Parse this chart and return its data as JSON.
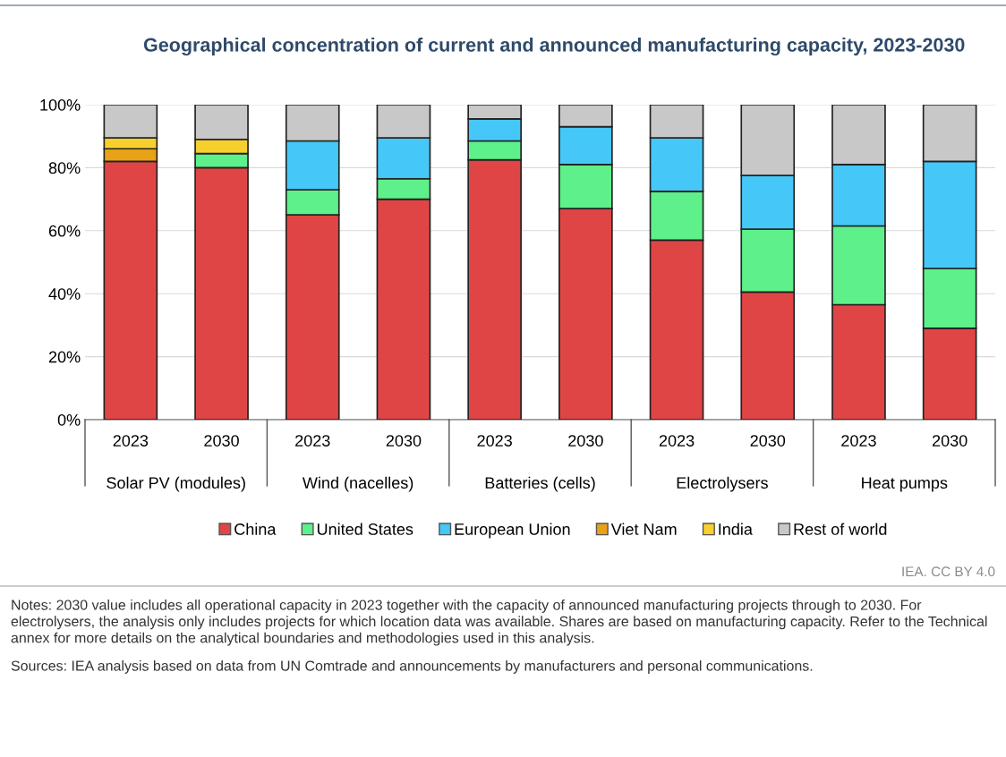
{
  "chart_data": {
    "type": "bar",
    "title": "Geographical concentration of current and announced manufacturing capacity, 2023-2030",
    "categories": [
      "2023",
      "2030",
      "2023",
      "2030",
      "2023",
      "2030",
      "2023",
      "2030",
      "2023",
      "2030"
    ],
    "stacked": true,
    "series": [
      {
        "name": "China",
        "color": "#e04545",
        "values": [
          82,
          80,
          65,
          70,
          82.5,
          67,
          57,
          40.5,
          36.5,
          29
        ]
      },
      {
        "name": "United States",
        "color": "#5ef08a",
        "values": [
          0,
          4.5,
          8,
          6.5,
          6,
          14,
          15.5,
          20,
          25,
          19
        ]
      },
      {
        "name": "European Union",
        "color": "#45c8f7",
        "values": [
          0,
          0,
          15.5,
          13,
          7,
          12,
          17,
          17,
          19.5,
          34
        ]
      },
      {
        "name": "Viet Nam",
        "color": "#e8a218",
        "values": [
          4,
          0,
          0,
          0,
          0,
          0,
          0,
          0,
          0,
          0
        ]
      },
      {
        "name": "India",
        "color": "#f7d02e",
        "values": [
          3.5,
          4.5,
          0,
          0,
          0,
          0,
          0,
          0,
          0,
          0
        ]
      },
      {
        "name": "Rest of world",
        "color": "#c8c8c8",
        "values": [
          10.5,
          11,
          11.5,
          10.5,
          4.5,
          7,
          10.5,
          22.5,
          19,
          18
        ]
      }
    ],
    "ylim": [
      0,
      100
    ],
    "yticks": [
      {
        "value": 0,
        "label": "0%"
      },
      {
        "value": 20,
        "label": "20%"
      },
      {
        "value": 40,
        "label": "40%"
      },
      {
        "value": 60,
        "label": "60%"
      },
      {
        "value": 80,
        "label": "80%"
      },
      {
        "value": 100,
        "label": "100%"
      }
    ],
    "grid": "y",
    "legend": "bottom",
    "annotations": [
      "Solar PV (modules)",
      "Wind (nacelles)",
      "Batteries (cells)",
      "Electrolysers",
      "Heat pumps",
      "IEA. CC BY 4.0",
      "Notes: 2030 value includes all operational capacity in 2023 together with the capacity of announced manufacturing projects through to 2030. For electrolysers, the analysis only includes projects for which location data was available. Shares are based on manufacturing capacity. Refer to the Technical annex for more details on the analytical boundaries and methodologies used in this analysis.",
      "Sources: IEA analysis based on data from UN Comtrade and announcements by manufacturers and personal communications."
    ]
  }
}
